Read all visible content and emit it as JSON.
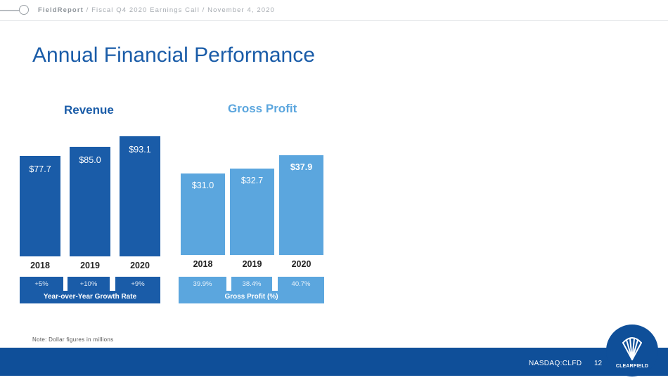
{
  "header": {
    "brand": "FieldReport",
    "separator": " / ",
    "context": "Fiscal Q4 2020 Earnings Call / November 4, 2020"
  },
  "title": "Annual Financial Performance",
  "colors": {
    "revenue_bar": "#1a5ca8",
    "profit_bar": "#5ba6de",
    "title": "#1a5ca8",
    "footer": "#0f4f99"
  },
  "chart_data": [
    {
      "type": "bar",
      "title": "Revenue",
      "categories": [
        "2018",
        "2019",
        "2020"
      ],
      "values": [
        77.7,
        85.0,
        93.1
      ],
      "labels": [
        "$77.7",
        "$85.0",
        "$93.1"
      ],
      "ylim": [
        0,
        100
      ],
      "growth_values": [
        "+5%",
        "+10%",
        "+9%"
      ],
      "growth_label": "Year-over-Year Growth Rate"
    },
    {
      "type": "bar",
      "title": "Gross Profit",
      "categories": [
        "2018",
        "2019",
        "2020"
      ],
      "values": [
        31.0,
        32.7,
        37.9
      ],
      "labels": [
        "$31.0",
        "$32.7",
        "$37.9"
      ],
      "ylim": [
        0,
        40
      ],
      "growth_values": [
        "39.9%",
        "38.4%",
        "40.7%"
      ],
      "growth_label": "Gross Profit (%)"
    }
  ],
  "note": "Note: Dollar figures in millions",
  "footer": {
    "ticker": "NASDAQ:CLFD",
    "page": "12",
    "logo_text": "CLEARFIELD"
  }
}
